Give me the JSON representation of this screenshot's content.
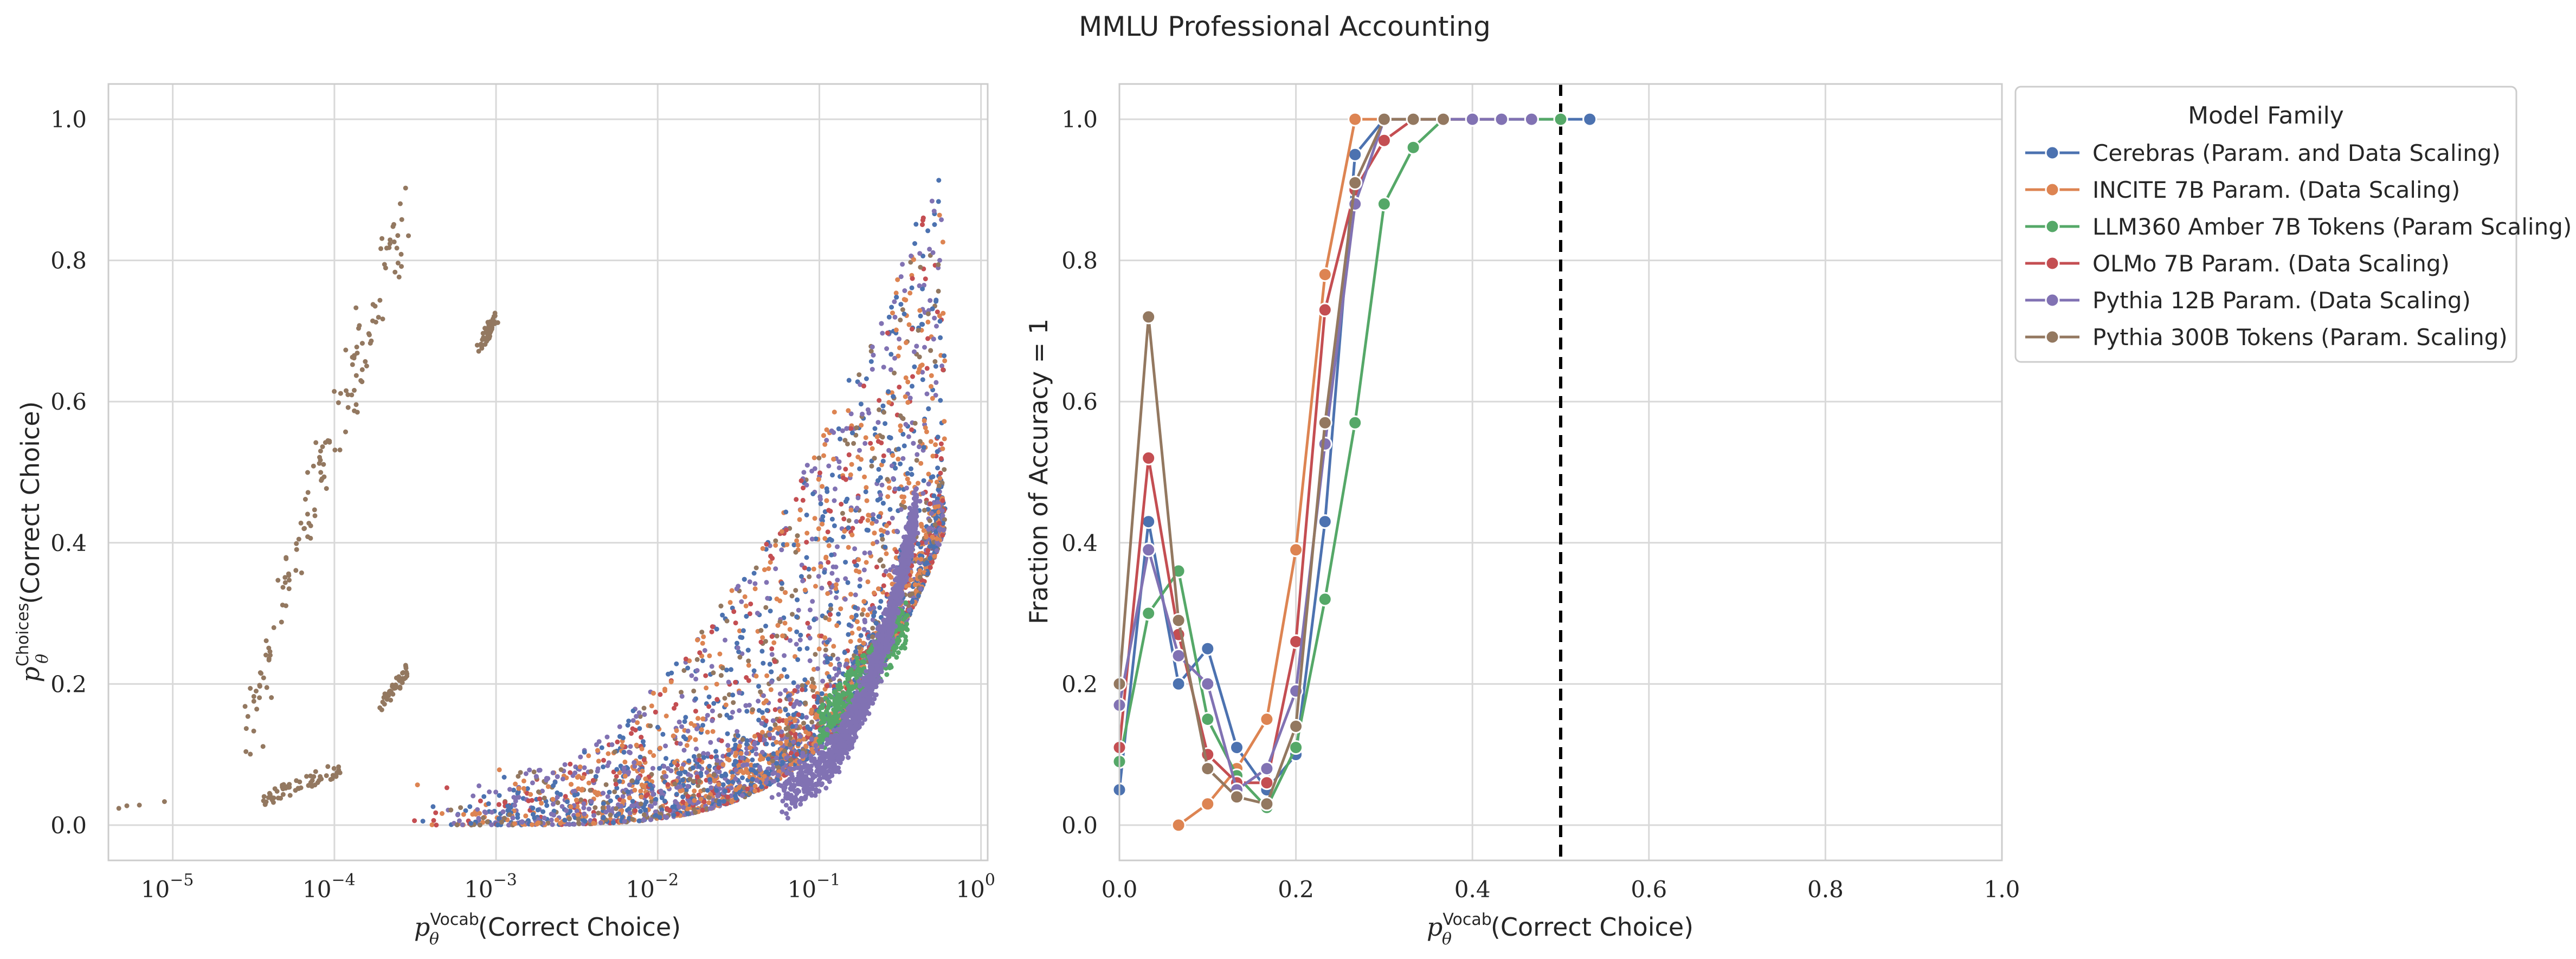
{
  "title": "MMLU Professional Accounting",
  "colors": {
    "cerebras": "#4c72b0",
    "incite": "#dd8452",
    "llm360": "#55a868",
    "olmo": "#c44e52",
    "pythia12b": "#8172b3",
    "pythia300b": "#937860"
  },
  "chart_data": [
    {
      "type": "scatter",
      "panel": "left",
      "xlabel_main": "p",
      "xlabel_sub": "θ",
      "xlabel_sup": "Vocab",
      "xlabel_rest": "(Correct Choice)",
      "ylabel_main": "p",
      "ylabel_sub": "θ",
      "ylabel_sup": "Choices",
      "ylabel_rest": "(Correct Choice)",
      "xscale": "log",
      "xlim": [
        4e-06,
        1.1
      ],
      "ylim": [
        -0.05,
        1.05
      ],
      "xtick_labels": [
        {
          "value": 1e-05,
          "base": "10",
          "exp": "−5"
        },
        {
          "value": 0.0001,
          "base": "10",
          "exp": "−4"
        },
        {
          "value": 0.001,
          "base": "10",
          "exp": "−3"
        },
        {
          "value": 0.01,
          "base": "10",
          "exp": "−2"
        },
        {
          "value": 0.1,
          "base": "10",
          "exp": "−1"
        },
        {
          "value": 1,
          "base": "10",
          "exp": "0"
        }
      ],
      "yticks": [
        0.0,
        0.2,
        0.4,
        0.6,
        0.8,
        1.0
      ],
      "ytick_labels": [
        "0.0",
        "0.2",
        "0.4",
        "0.6",
        "0.8",
        "1.0"
      ],
      "grid": true,
      "clusters": [
        {
          "series": "Pythia 300B Tokens (Param. Scaling)",
          "color_key": "pythia300b",
          "kind": "arc",
          "x": [
            3e-05,
            0.00028
          ],
          "y": [
            0.13,
            0.87
          ],
          "n": 140
        },
        {
          "series": "Pythia 300B Tokens (Param. Scaling)",
          "color_key": "pythia300b",
          "kind": "blob",
          "x": [
            0.0008,
            0.001
          ],
          "y": [
            0.67,
            0.73
          ],
          "n": 50
        },
        {
          "series": "Pythia 300B Tokens (Param. Scaling)",
          "color_key": "pythia300b",
          "kind": "blob",
          "x": [
            0.0002,
            0.00028
          ],
          "y": [
            0.16,
            0.23
          ],
          "n": 50
        },
        {
          "series": "Pythia 300B Tokens (Param. Scaling)",
          "color_key": "pythia300b",
          "kind": "blob",
          "x": [
            3.5e-05,
            0.00011
          ],
          "y": [
            0.025,
            0.09
          ],
          "n": 60
        },
        {
          "series": "Pythia 300B Tokens (Param. Scaling)",
          "color_key": "pythia300b",
          "kind": "blob",
          "x": [
            4e-06,
            9e-06
          ],
          "y": [
            0.02,
            0.035
          ],
          "n": 4
        },
        {
          "series": "all",
          "color_key": "mixed",
          "kind": "cone",
          "x": [
            0.0003,
            0.6
          ],
          "y": [
            0.0,
            0.96
          ],
          "n": 3800
        },
        {
          "series": "LLM360 Amber 7B Tokens (Param Scaling)",
          "color_key": "llm360",
          "kind": "blob",
          "x": [
            0.1,
            0.35
          ],
          "y": [
            0.1,
            0.32
          ],
          "n": 350
        },
        {
          "series": "Pythia 12B Param. (Data Scaling)",
          "color_key": "pythia12b",
          "kind": "band",
          "x": [
            0.05,
            0.4
          ],
          "y": [
            0.05,
            0.45
          ],
          "n": 1500
        }
      ]
    },
    {
      "type": "line",
      "panel": "right",
      "xlabel_main": "p",
      "xlabel_sub": "θ",
      "xlabel_sup": "Vocab",
      "xlabel_rest": "(Correct Choice)",
      "ylabel": "Fraction of Accuracy = 1",
      "xlim": [
        0.0,
        1.0
      ],
      "ylim": [
        -0.05,
        1.05
      ],
      "xticks": [
        0.0,
        0.2,
        0.4,
        0.6,
        0.8,
        1.0
      ],
      "xtick_labels": [
        "0.0",
        "0.2",
        "0.4",
        "0.6",
        "0.8",
        "1.0"
      ],
      "yticks": [
        0.0,
        0.2,
        0.4,
        0.6,
        0.8,
        1.0
      ],
      "ytick_labels": [
        "0.0",
        "0.2",
        "0.4",
        "0.6",
        "0.8",
        "1.0"
      ],
      "vline": {
        "x": 0.5,
        "style": "dashed",
        "color": "#000000"
      },
      "grid": true,
      "legend": {
        "title": "Model Family",
        "placement": "outside-upper-right"
      },
      "series": [
        {
          "name": "Cerebras (Param. and Data Scaling)",
          "color_key": "cerebras",
          "x": [
            0.0,
            0.033,
            0.067,
            0.1,
            0.133,
            0.167,
            0.2,
            0.233,
            0.267,
            0.3,
            0.333,
            0.367,
            0.4,
            0.433,
            0.467,
            0.5,
            0.533
          ],
          "y": [
            0.05,
            0.43,
            0.2,
            0.25,
            0.11,
            0.05,
            0.1,
            0.43,
            0.95,
            1.0,
            1.0,
            1.0,
            1.0,
            1.0,
            1.0,
            1.0,
            1.0
          ]
        },
        {
          "name": "INCITE 7B Param. (Data Scaling)",
          "color_key": "incite",
          "x": [
            0.067,
            0.1,
            0.133,
            0.167,
            0.2,
            0.233,
            0.267,
            0.3,
            0.333,
            0.367,
            0.4
          ],
          "y": [
            0.0,
            0.03,
            0.08,
            0.15,
            0.39,
            0.78,
            1.0,
            1.0,
            1.0,
            1.0,
            1.0
          ]
        },
        {
          "name": "LLM360 Amber 7B Tokens (Param Scaling)",
          "color_key": "llm360",
          "x": [
            0.0,
            0.033,
            0.067,
            0.1,
            0.133,
            0.167,
            0.2,
            0.233,
            0.267,
            0.3,
            0.333,
            0.367,
            0.4,
            0.433,
            0.467,
            0.5
          ],
          "y": [
            0.09,
            0.3,
            0.36,
            0.15,
            0.07,
            0.025,
            0.11,
            0.32,
            0.57,
            0.88,
            0.96,
            1.0,
            1.0,
            1.0,
            1.0,
            1.0
          ]
        },
        {
          "name": "OLMo 7B Param. (Data Scaling)",
          "color_key": "olmo",
          "x": [
            0.0,
            0.033,
            0.067,
            0.1,
            0.133,
            0.167,
            0.2,
            0.233,
            0.267,
            0.3,
            0.333,
            0.367,
            0.4,
            0.433
          ],
          "y": [
            0.11,
            0.52,
            0.27,
            0.1,
            0.06,
            0.06,
            0.26,
            0.73,
            0.9,
            0.97,
            1.0,
            1.0,
            1.0,
            1.0
          ]
        },
        {
          "name": "Pythia 12B Param. (Data Scaling)",
          "color_key": "pythia12b",
          "x": [
            0.0,
            0.033,
            0.067,
            0.1,
            0.133,
            0.167,
            0.2,
            0.233,
            0.267,
            0.3,
            0.333,
            0.367,
            0.4,
            0.433,
            0.467
          ],
          "y": [
            0.17,
            0.39,
            0.24,
            0.2,
            0.05,
            0.08,
            0.19,
            0.54,
            0.88,
            1.0,
            1.0,
            1.0,
            1.0,
            1.0,
            1.0
          ]
        },
        {
          "name": "Pythia 300B Tokens (Param. Scaling)",
          "color_key": "pythia300b",
          "x": [
            0.0,
            0.033,
            0.067,
            0.1,
            0.133,
            0.167,
            0.2,
            0.233,
            0.267,
            0.3,
            0.333,
            0.367
          ],
          "y": [
            0.2,
            0.72,
            0.29,
            0.08,
            0.04,
            0.03,
            0.14,
            0.57,
            0.91,
            1.0,
            1.0,
            1.0
          ]
        }
      ]
    }
  ]
}
